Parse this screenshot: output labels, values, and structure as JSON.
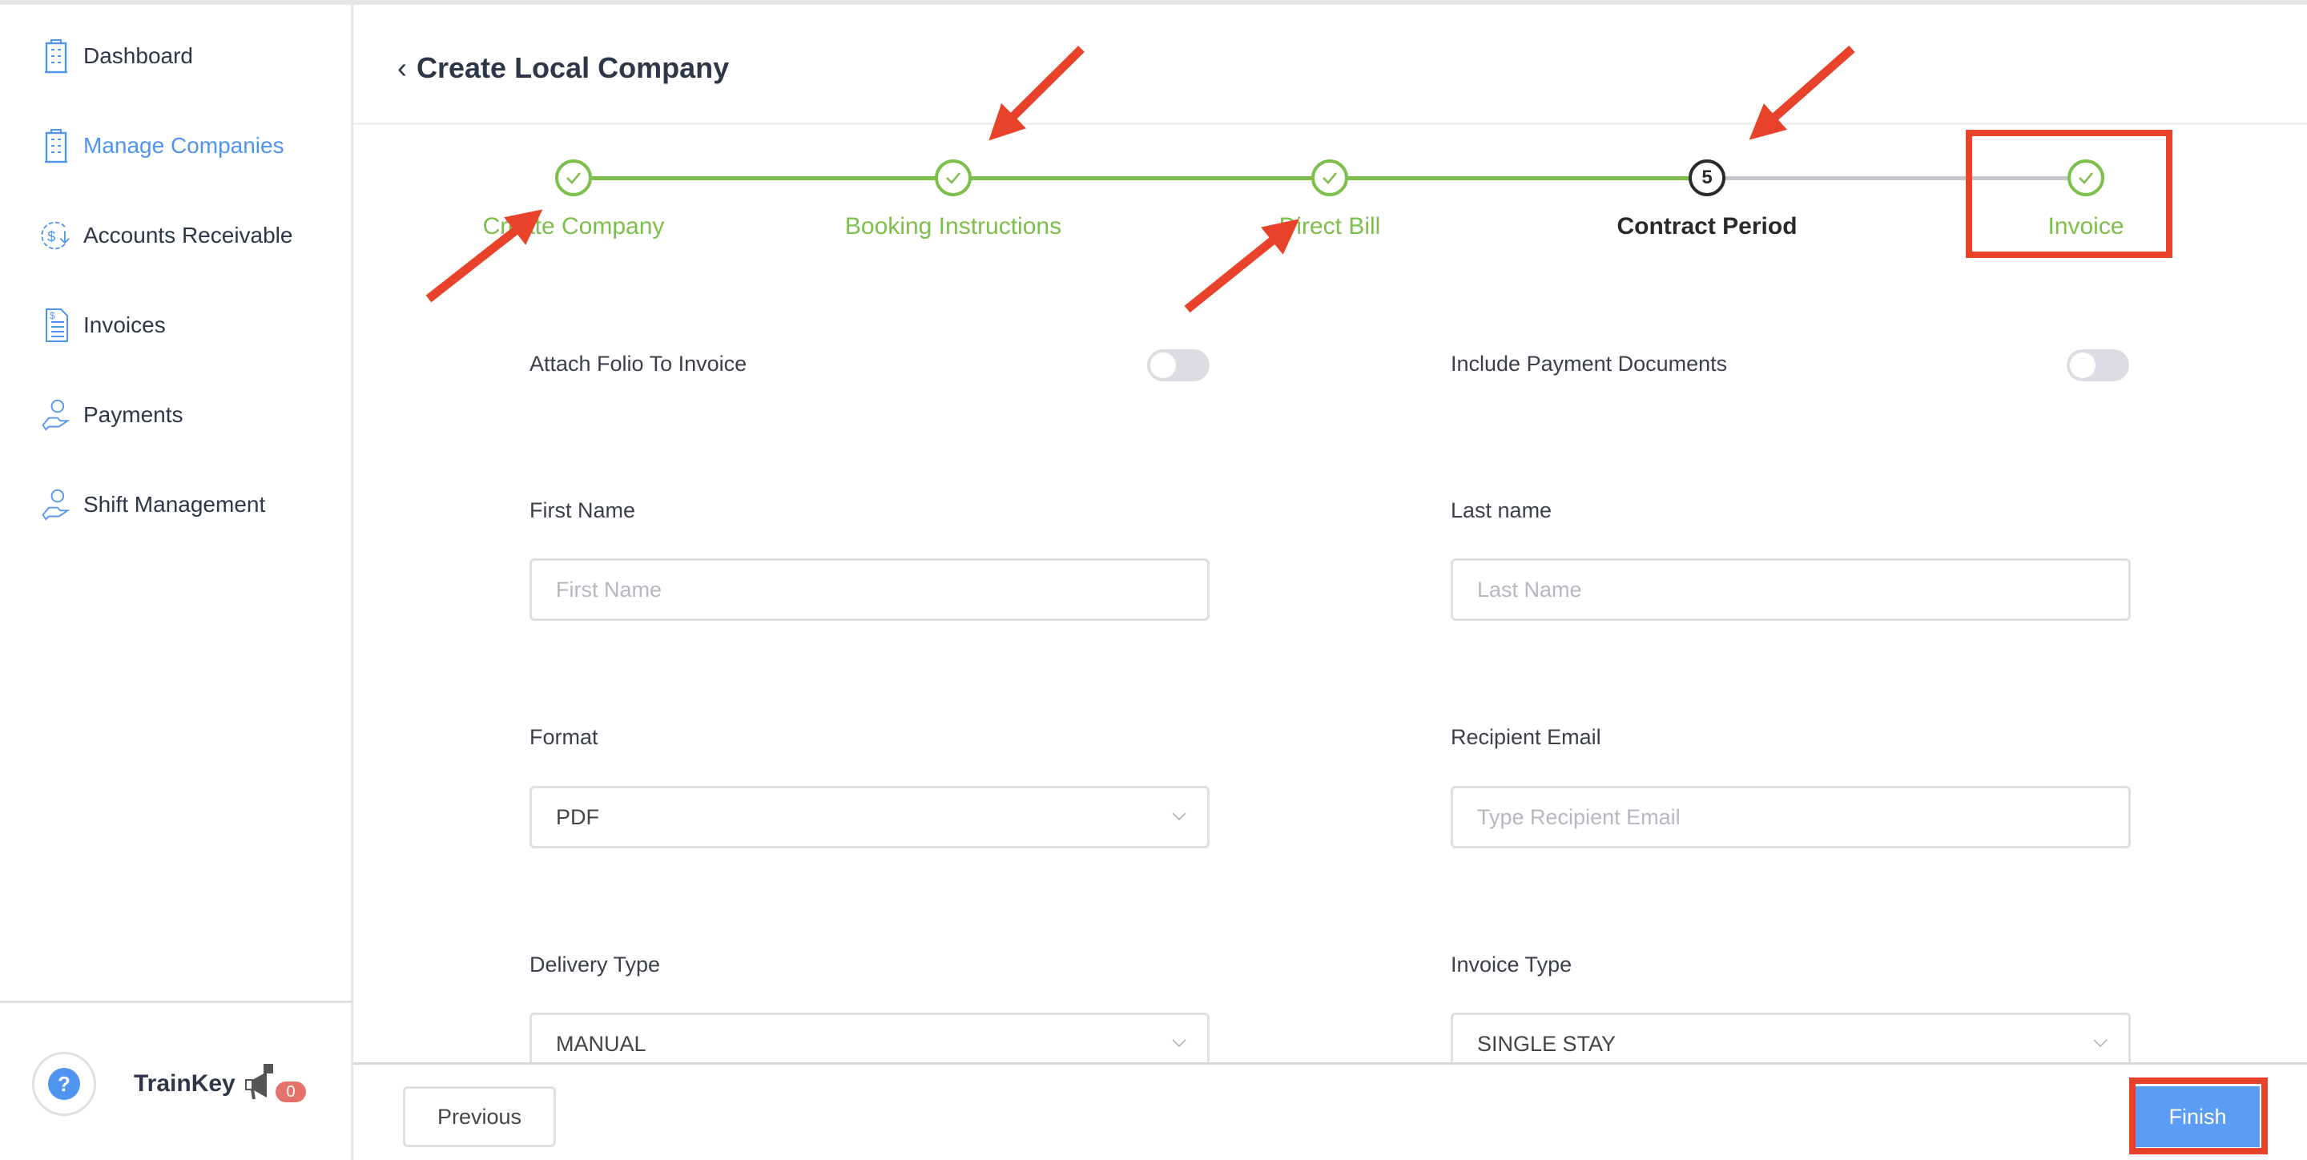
{
  "sidebar": {
    "items": [
      {
        "label": "Dashboard",
        "icon": "building-icon",
        "active": false
      },
      {
        "label": "Manage Companies",
        "icon": "building-icon",
        "active": true
      },
      {
        "label": "Accounts Receivable",
        "icon": "dollar-cycle-icon",
        "active": false
      },
      {
        "label": "Invoices",
        "icon": "invoice-document-icon",
        "active": false
      },
      {
        "label": "Payments",
        "icon": "hand-coin-icon",
        "active": false
      },
      {
        "label": "Shift Management",
        "icon": "hand-coin-icon",
        "active": false
      }
    ],
    "help": {
      "brand": "TrainKey",
      "notification_count": "0"
    }
  },
  "header": {
    "title": "Create Local Company"
  },
  "stepper": {
    "steps": [
      {
        "label": "Create Company",
        "state": "complete"
      },
      {
        "label": "Booking Instructions",
        "state": "complete"
      },
      {
        "label": "Direct Bill",
        "state": "complete"
      },
      {
        "label": "Contract Period",
        "state": "current",
        "number": "5"
      },
      {
        "label": "Invoice",
        "state": "complete"
      }
    ]
  },
  "form": {
    "attach_folio": {
      "label": "Attach Folio To Invoice",
      "on": false
    },
    "include_payment": {
      "label": "Include Payment Documents",
      "on": false
    },
    "first_name": {
      "label": "First Name",
      "placeholder": "First Name",
      "value": ""
    },
    "last_name": {
      "label": "Last name",
      "placeholder": "Last Name",
      "value": ""
    },
    "format": {
      "label": "Format",
      "value": "PDF"
    },
    "recipient_email": {
      "label": "Recipient Email",
      "placeholder": "Type Recipient Email",
      "value": ""
    },
    "delivery_type": {
      "label": "Delivery Type",
      "value": "MANUAL"
    },
    "invoice_type": {
      "label": "Invoice Type",
      "value": "SINGLE STAY"
    }
  },
  "footer": {
    "previous": "Previous",
    "finish": "Finish"
  },
  "colors": {
    "accent": "#4f95f0",
    "complete": "#7cc04b",
    "annotation": "#e8432a",
    "badge": "#e5736c"
  }
}
